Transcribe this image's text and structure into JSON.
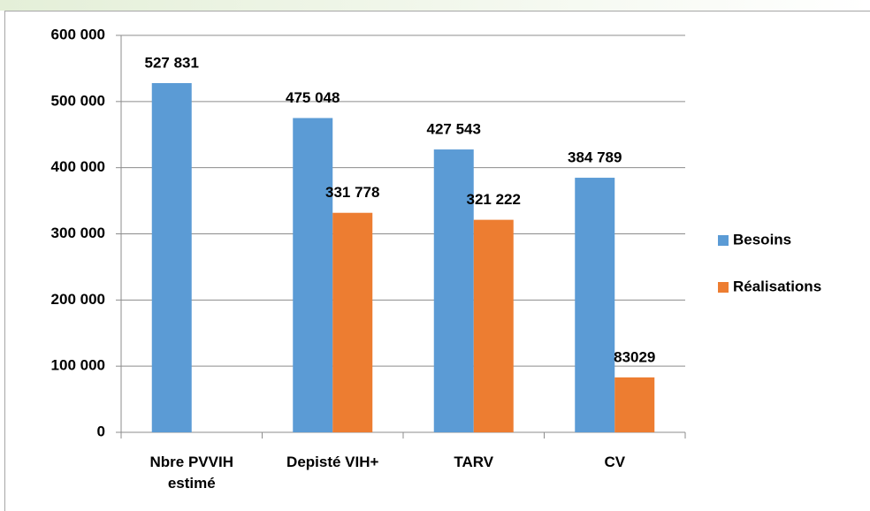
{
  "chart_data": {
    "type": "bar",
    "categories": [
      "Nbre PVVIH estimé",
      "Depisté VIH+",
      "TARV",
      "CV"
    ],
    "series": [
      {
        "name": "Besoins",
        "color": "#5b9bd5",
        "values": [
          527831,
          475048,
          427543,
          384789
        ],
        "value_labels": [
          "527 831",
          "475 048",
          "427 543",
          "384 789"
        ]
      },
      {
        "name": "Réalisations",
        "color": "#ed7d31",
        "values": [
          null,
          331778,
          321222,
          83029
        ],
        "value_labels": [
          null,
          "331 778",
          "321 222",
          "83029"
        ]
      }
    ],
    "ylim": [
      0,
      600000
    ],
    "yticks": [
      0,
      {
        "value": 100000,
        "label": "100 000"
      },
      {
        "value": 200000,
        "label": "200 000"
      },
      {
        "value": 300000,
        "label": "300 000"
      },
      {
        "value": 400000,
        "label": "400 000"
      },
      {
        "value": 500000,
        "label": "500 000"
      },
      {
        "value": 600000,
        "label": "600 000"
      }
    ],
    "grid": true,
    "legend": "right"
  }
}
